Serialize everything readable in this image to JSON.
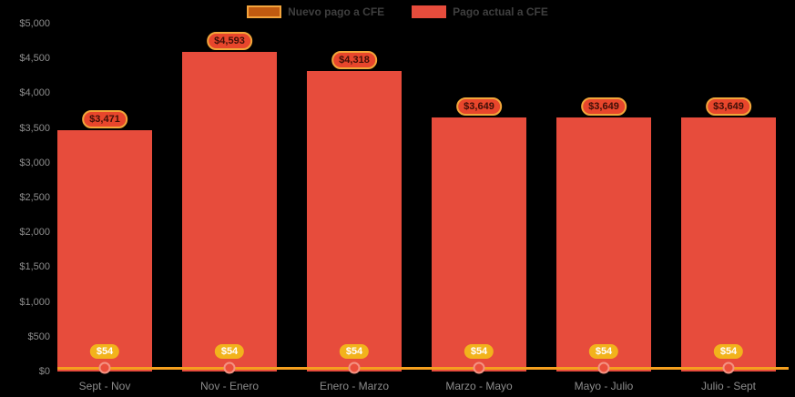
{
  "chart_data": {
    "type": "bar",
    "title": "",
    "xlabel": "",
    "ylabel": "",
    "categories": [
      "Sept - Nov",
      "Nov - Enero",
      "Enero - Marzo",
      "Marzo - Mayo",
      "Mayo - Julio",
      "Julio - Sept"
    ],
    "series": [
      {
        "name": "Nuevo pago a CFE",
        "type": "line",
        "color": "#f59f1e",
        "marker_fill": "#ea4f3c",
        "marker_ring": "#f49383",
        "values": [
          54,
          54,
          54,
          54,
          54,
          54
        ],
        "data_labels": [
          "$54",
          "$54",
          "$54",
          "$54",
          "$54",
          "$54"
        ],
        "label_bg": "#f2b31c",
        "label_text_color": "#ffffff"
      },
      {
        "name": "Pago actual a CFE",
        "type": "column",
        "color": "#e74c3c",
        "values": [
          3471,
          4593,
          4318,
          3649,
          3649,
          3649
        ],
        "data_labels": [
          "$3,471",
          "$4,593",
          "$4,318",
          "$3,649",
          "$3,649",
          "$3,649"
        ],
        "label_bg": "#e8462c",
        "label_border": "#f2a63a",
        "label_text_color": "#3f0f07"
      }
    ],
    "ylim": [
      0,
      5000
    ],
    "ytick_step": 500,
    "ytick_labels": [
      "$0",
      "$500",
      "$1,000",
      "$1,500",
      "$2,000",
      "$2,500",
      "$3,000",
      "$3,500",
      "$4,000",
      "$4,500",
      "$5,000"
    ],
    "legend_position": "top-center",
    "grid": false,
    "background_color": "#000000",
    "axis_label_color": "#8c8c8c",
    "legend_text_color": "#3f3f3f",
    "legend_swatches": [
      {
        "fill": "#c05a10",
        "border": "#f3a43c"
      },
      {
        "fill": "#e74c3c",
        "border": "#e74c3c"
      }
    ]
  }
}
